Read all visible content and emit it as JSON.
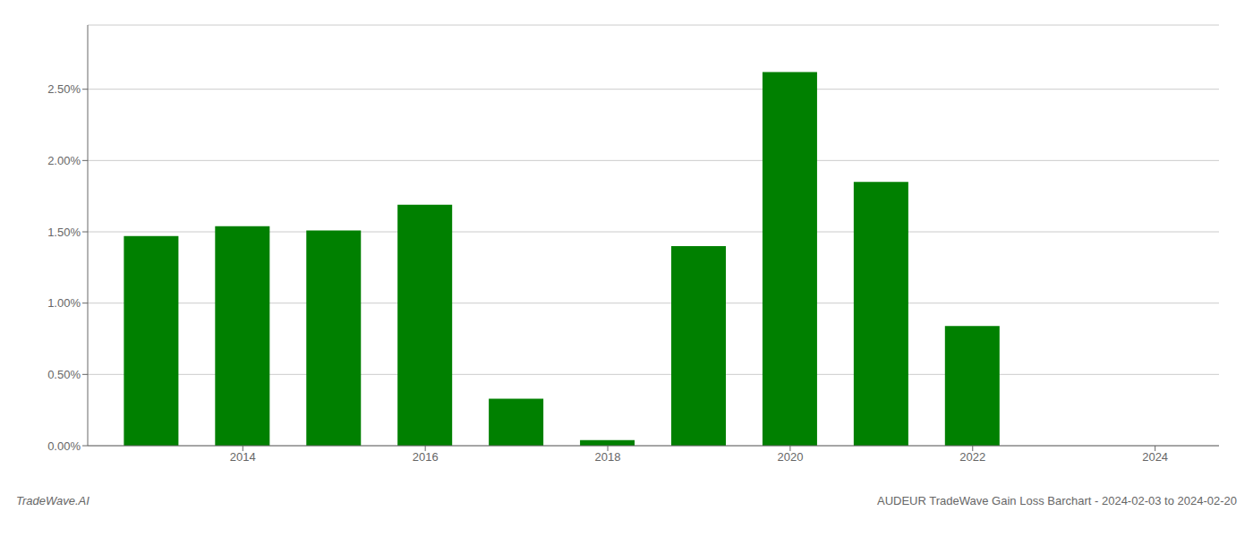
{
  "chart_data": {
    "type": "bar",
    "x": [
      2013,
      2014,
      2015,
      2016,
      2017,
      2018,
      2019,
      2020,
      2021,
      2022,
      2023
    ],
    "values": [
      0.0147,
      0.0154,
      0.0151,
      0.0169,
      0.0033,
      0.0004,
      0.014,
      0.0262,
      0.0185,
      0.0084,
      0.0
    ],
    "color": "#008000",
    "xlim": [
      2012.3,
      2024.7
    ],
    "xticks": [
      2014,
      2016,
      2018,
      2020,
      2022,
      2024
    ],
    "ylim": [
      0.0,
      0.0295
    ],
    "yticks": [
      {
        "value": 0.0,
        "label": "0.00%"
      },
      {
        "value": 0.005,
        "label": "0.50%"
      },
      {
        "value": 0.01,
        "label": "1.00%"
      },
      {
        "value": 0.015,
        "label": "1.50%"
      },
      {
        "value": 0.02,
        "label": "2.00%"
      },
      {
        "value": 0.025,
        "label": "2.50%"
      }
    ],
    "grid": true,
    "annotations": [
      "TradeWave.AI",
      "AUDEUR TradeWave Gain Loss Barchart - 2024-02-03 to 2024-02-20"
    ]
  }
}
